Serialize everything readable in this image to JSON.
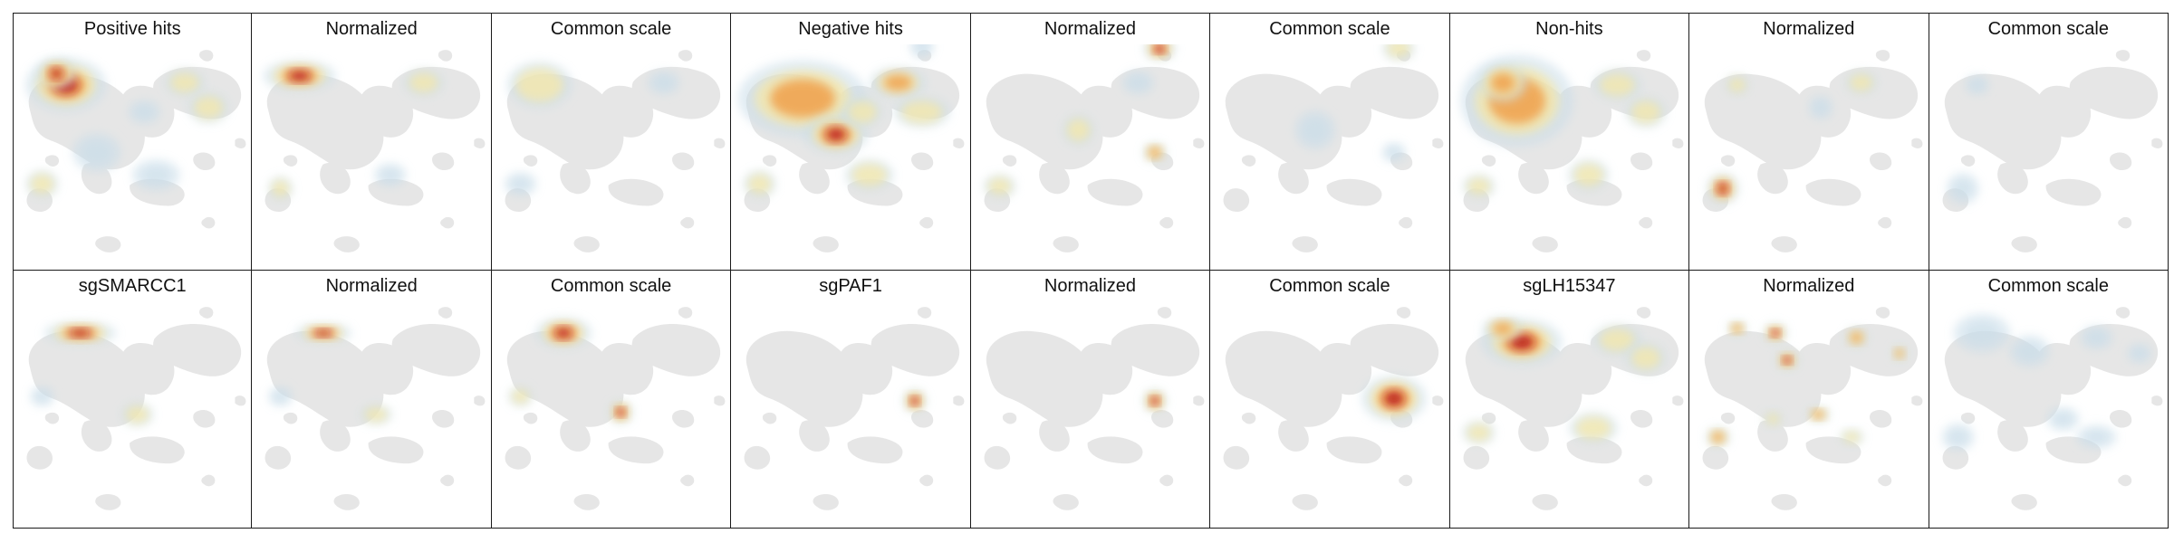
{
  "figure": {
    "rows": [
      {
        "panels": [
          {
            "title": "Positive hits",
            "kind": "density",
            "hotspots": [
              {
                "cx": 0.22,
                "cy": 0.18,
                "rx": 0.1,
                "ry": 0.07,
                "level": 0.95
              },
              {
                "cx": 0.18,
                "cy": 0.13,
                "rx": 0.05,
                "ry": 0.04,
                "level": 0.85
              },
              {
                "cx": 0.72,
                "cy": 0.17,
                "rx": 0.05,
                "ry": 0.035,
                "level": 0.35
              },
              {
                "cx": 0.82,
                "cy": 0.28,
                "rx": 0.05,
                "ry": 0.04,
                "level": 0.3
              },
              {
                "cx": 0.55,
                "cy": 0.3,
                "rx": 0.04,
                "ry": 0.03,
                "level": 0.25
              },
              {
                "cx": 0.12,
                "cy": 0.62,
                "rx": 0.04,
                "ry": 0.035,
                "level": 0.3
              },
              {
                "cx": 0.6,
                "cy": 0.58,
                "rx": 0.06,
                "ry": 0.04,
                "level": 0.25
              },
              {
                "cx": 0.35,
                "cy": 0.48,
                "rx": 0.06,
                "ry": 0.05,
                "level": 0.25
              }
            ]
          },
          {
            "title": "Normalized",
            "kind": "density",
            "hotspots": [
              {
                "cx": 0.2,
                "cy": 0.14,
                "rx": 0.09,
                "ry": 0.04,
                "level": 1.0
              },
              {
                "cx": 0.72,
                "cy": 0.17,
                "rx": 0.05,
                "ry": 0.035,
                "level": 0.3
              },
              {
                "cx": 0.12,
                "cy": 0.64,
                "rx": 0.03,
                "ry": 0.03,
                "level": 0.35
              },
              {
                "cx": 0.58,
                "cy": 0.58,
                "rx": 0.04,
                "ry": 0.03,
                "level": 0.25
              }
            ]
          },
          {
            "title": "Common scale",
            "kind": "density",
            "hotspots": [
              {
                "cx": 0.2,
                "cy": 0.18,
                "rx": 0.08,
                "ry": 0.06,
                "level": 0.3
              },
              {
                "cx": 0.12,
                "cy": 0.62,
                "rx": 0.04,
                "ry": 0.03,
                "level": 0.15
              },
              {
                "cx": 0.72,
                "cy": 0.17,
                "rx": 0.04,
                "ry": 0.03,
                "level": 0.2
              }
            ]
          },
          {
            "title": "Negative hits",
            "kind": "density",
            "hotspots": [
              {
                "cx": 0.3,
                "cy": 0.24,
                "rx": 0.16,
                "ry": 0.1,
                "level": 0.65
              },
              {
                "cx": 0.44,
                "cy": 0.4,
                "rx": 0.08,
                "ry": 0.05,
                "level": 0.95
              },
              {
                "cx": 0.7,
                "cy": 0.17,
                "rx": 0.07,
                "ry": 0.04,
                "level": 0.55
              },
              {
                "cx": 0.8,
                "cy": 0.3,
                "rx": 0.07,
                "ry": 0.04,
                "level": 0.45
              },
              {
                "cx": 0.55,
                "cy": 0.3,
                "rx": 0.05,
                "ry": 0.04,
                "level": 0.4
              },
              {
                "cx": 0.12,
                "cy": 0.62,
                "rx": 0.04,
                "ry": 0.035,
                "level": 0.4
              },
              {
                "cx": 0.58,
                "cy": 0.58,
                "rx": 0.06,
                "ry": 0.04,
                "level": 0.35
              },
              {
                "cx": 0.8,
                "cy": 0.01,
                "rx": 0.03,
                "ry": 0.03,
                "level": 0.25
              }
            ]
          },
          {
            "title": "Normalized",
            "kind": "density",
            "hotspots": [
              {
                "cx": 0.79,
                "cy": 0.02,
                "rx": 0.04,
                "ry": 0.03,
                "level": 1.0
              },
              {
                "cx": 0.77,
                "cy": 0.48,
                "rx": 0.03,
                "ry": 0.025,
                "level": 0.8
              },
              {
                "cx": 0.45,
                "cy": 0.38,
                "rx": 0.04,
                "ry": 0.04,
                "level": 0.45
              },
              {
                "cx": 0.12,
                "cy": 0.63,
                "rx": 0.04,
                "ry": 0.03,
                "level": 0.35
              },
              {
                "cx": 0.7,
                "cy": 0.17,
                "rx": 0.04,
                "ry": 0.03,
                "level": 0.25
              }
            ]
          },
          {
            "title": "Common scale",
            "kind": "density",
            "hotspots": [
              {
                "cx": 0.79,
                "cy": 0.02,
                "rx": 0.04,
                "ry": 0.03,
                "level": 0.3
              },
              {
                "cx": 0.77,
                "cy": 0.48,
                "rx": 0.03,
                "ry": 0.025,
                "level": 0.25
              },
              {
                "cx": 0.44,
                "cy": 0.38,
                "rx": 0.05,
                "ry": 0.05,
                "level": 0.15
              }
            ]
          },
          {
            "title": "Non-hits",
            "kind": "density",
            "hotspots": [
              {
                "cx": 0.28,
                "cy": 0.25,
                "rx": 0.14,
                "ry": 0.12,
                "level": 0.75
              },
              {
                "cx": 0.22,
                "cy": 0.17,
                "rx": 0.06,
                "ry": 0.05,
                "level": 0.8
              },
              {
                "cx": 0.7,
                "cy": 0.18,
                "rx": 0.06,
                "ry": 0.04,
                "level": 0.4
              },
              {
                "cx": 0.82,
                "cy": 0.3,
                "rx": 0.05,
                "ry": 0.04,
                "level": 0.35
              },
              {
                "cx": 0.12,
                "cy": 0.63,
                "rx": 0.04,
                "ry": 0.03,
                "level": 0.35
              },
              {
                "cx": 0.58,
                "cy": 0.58,
                "rx": 0.05,
                "ry": 0.04,
                "level": 0.3
              }
            ]
          },
          {
            "title": "Normalized",
            "kind": "density",
            "hotspots": [
              {
                "cx": 0.14,
                "cy": 0.64,
                "rx": 0.04,
                "ry": 0.04,
                "level": 1.0
              },
              {
                "cx": 0.2,
                "cy": 0.18,
                "rx": 0.03,
                "ry": 0.025,
                "level": 0.35
              },
              {
                "cx": 0.72,
                "cy": 0.17,
                "rx": 0.04,
                "ry": 0.03,
                "level": 0.3
              },
              {
                "cx": 0.55,
                "cy": 0.28,
                "rx": 0.03,
                "ry": 0.03,
                "level": 0.2
              }
            ]
          },
          {
            "title": "Common scale",
            "kind": "density",
            "hotspots": [
              {
                "cx": 0.14,
                "cy": 0.64,
                "rx": 0.04,
                "ry": 0.04,
                "level": 0.2
              },
              {
                "cx": 0.2,
                "cy": 0.18,
                "rx": 0.03,
                "ry": 0.025,
                "level": 0.1
              }
            ]
          }
        ]
      },
      {
        "panels": [
          {
            "title": "sgSMARCC1",
            "kind": "density",
            "hotspots": [
              {
                "cx": 0.28,
                "cy": 0.14,
                "rx": 0.09,
                "ry": 0.03,
                "level": 0.95
              },
              {
                "cx": 0.52,
                "cy": 0.5,
                "rx": 0.04,
                "ry": 0.03,
                "level": 0.45
              },
              {
                "cx": 0.12,
                "cy": 0.42,
                "rx": 0.03,
                "ry": 0.025,
                "level": 0.2
              }
            ]
          },
          {
            "title": "Normalized",
            "kind": "density",
            "hotspots": [
              {
                "cx": 0.3,
                "cy": 0.14,
                "rx": 0.07,
                "ry": 0.025,
                "level": 1.0
              },
              {
                "cx": 0.52,
                "cy": 0.5,
                "rx": 0.04,
                "ry": 0.025,
                "level": 0.5
              },
              {
                "cx": 0.12,
                "cy": 0.42,
                "rx": 0.03,
                "ry": 0.025,
                "level": 0.2
              }
            ]
          },
          {
            "title": "Common scale",
            "kind": "density",
            "hotspots": [
              {
                "cx": 0.3,
                "cy": 0.14,
                "rx": 0.07,
                "ry": 0.04,
                "level": 1.0
              },
              {
                "cx": 0.54,
                "cy": 0.49,
                "rx": 0.03,
                "ry": 0.03,
                "level": 0.9
              },
              {
                "cx": 0.12,
                "cy": 0.42,
                "rx": 0.03,
                "ry": 0.025,
                "level": 0.35
              }
            ]
          },
          {
            "title": "sgPAF1",
            "kind": "density",
            "hotspots": [
              {
                "cx": 0.77,
                "cy": 0.44,
                "rx": 0.03,
                "ry": 0.03,
                "level": 0.85
              }
            ]
          },
          {
            "title": "Normalized",
            "kind": "density",
            "hotspots": [
              {
                "cx": 0.77,
                "cy": 0.44,
                "rx": 0.03,
                "ry": 0.03,
                "level": 0.9
              }
            ]
          },
          {
            "title": "Common scale",
            "kind": "density",
            "hotspots": [
              {
                "cx": 0.77,
                "cy": 0.43,
                "rx": 0.08,
                "ry": 0.06,
                "level": 1.0
              }
            ]
          },
          {
            "title": "sgLH15347",
            "kind": "density",
            "hotspots": [
              {
                "cx": 0.3,
                "cy": 0.18,
                "rx": 0.1,
                "ry": 0.06,
                "level": 0.9
              },
              {
                "cx": 0.22,
                "cy": 0.12,
                "rx": 0.05,
                "ry": 0.03,
                "level": 0.75
              },
              {
                "cx": 0.7,
                "cy": 0.17,
                "rx": 0.06,
                "ry": 0.04,
                "level": 0.45
              },
              {
                "cx": 0.82,
                "cy": 0.25,
                "rx": 0.05,
                "ry": 0.04,
                "level": 0.4
              },
              {
                "cx": 0.12,
                "cy": 0.58,
                "rx": 0.04,
                "ry": 0.03,
                "level": 0.45
              },
              {
                "cx": 0.6,
                "cy": 0.56,
                "rx": 0.06,
                "ry": 0.04,
                "level": 0.35
              }
            ]
          },
          {
            "title": "Normalized",
            "kind": "density",
            "hotspots": [
              {
                "cx": 0.36,
                "cy": 0.14,
                "rx": 0.03,
                "ry": 0.025,
                "level": 1.0
              },
              {
                "cx": 0.41,
                "cy": 0.26,
                "rx": 0.03,
                "ry": 0.025,
                "level": 1.0
              },
              {
                "cx": 0.2,
                "cy": 0.12,
                "rx": 0.025,
                "ry": 0.02,
                "level": 0.6
              },
              {
                "cx": 0.7,
                "cy": 0.16,
                "rx": 0.03,
                "ry": 0.025,
                "level": 0.6
              },
              {
                "cx": 0.88,
                "cy": 0.23,
                "rx": 0.02,
                "ry": 0.02,
                "level": 0.6
              },
              {
                "cx": 0.12,
                "cy": 0.6,
                "rx": 0.03,
                "ry": 0.025,
                "level": 0.75
              },
              {
                "cx": 0.54,
                "cy": 0.5,
                "rx": 0.03,
                "ry": 0.02,
                "level": 0.55
              },
              {
                "cx": 0.68,
                "cy": 0.6,
                "rx": 0.03,
                "ry": 0.02,
                "level": 0.5
              },
              {
                "cx": 0.35,
                "cy": 0.52,
                "rx": 0.025,
                "ry": 0.02,
                "level": 0.45
              }
            ]
          },
          {
            "title": "Common scale",
            "kind": "density",
            "hotspots": [
              {
                "cx": 0.22,
                "cy": 0.14,
                "rx": 0.07,
                "ry": 0.05,
                "level": 0.15
              },
              {
                "cx": 0.42,
                "cy": 0.22,
                "rx": 0.05,
                "ry": 0.04,
                "level": 0.2
              },
              {
                "cx": 0.7,
                "cy": 0.16,
                "rx": 0.04,
                "ry": 0.03,
                "level": 0.15
              },
              {
                "cx": 0.88,
                "cy": 0.23,
                "rx": 0.03,
                "ry": 0.025,
                "level": 0.15
              },
              {
                "cx": 0.12,
                "cy": 0.6,
                "rx": 0.04,
                "ry": 0.035,
                "level": 0.15
              },
              {
                "cx": 0.56,
                "cy": 0.52,
                "rx": 0.04,
                "ry": 0.03,
                "level": 0.15
              },
              {
                "cx": 0.7,
                "cy": 0.6,
                "rx": 0.05,
                "ry": 0.03,
                "level": 0.15
              }
            ]
          }
        ]
      }
    ]
  },
  "colors": {
    "background_blob": "#e6e6e6",
    "low": "#c9dde9",
    "mid": "#f6e8a8",
    "high": "#f0a04b",
    "peak": "#b8141f",
    "border": "#1a1a1a"
  }
}
